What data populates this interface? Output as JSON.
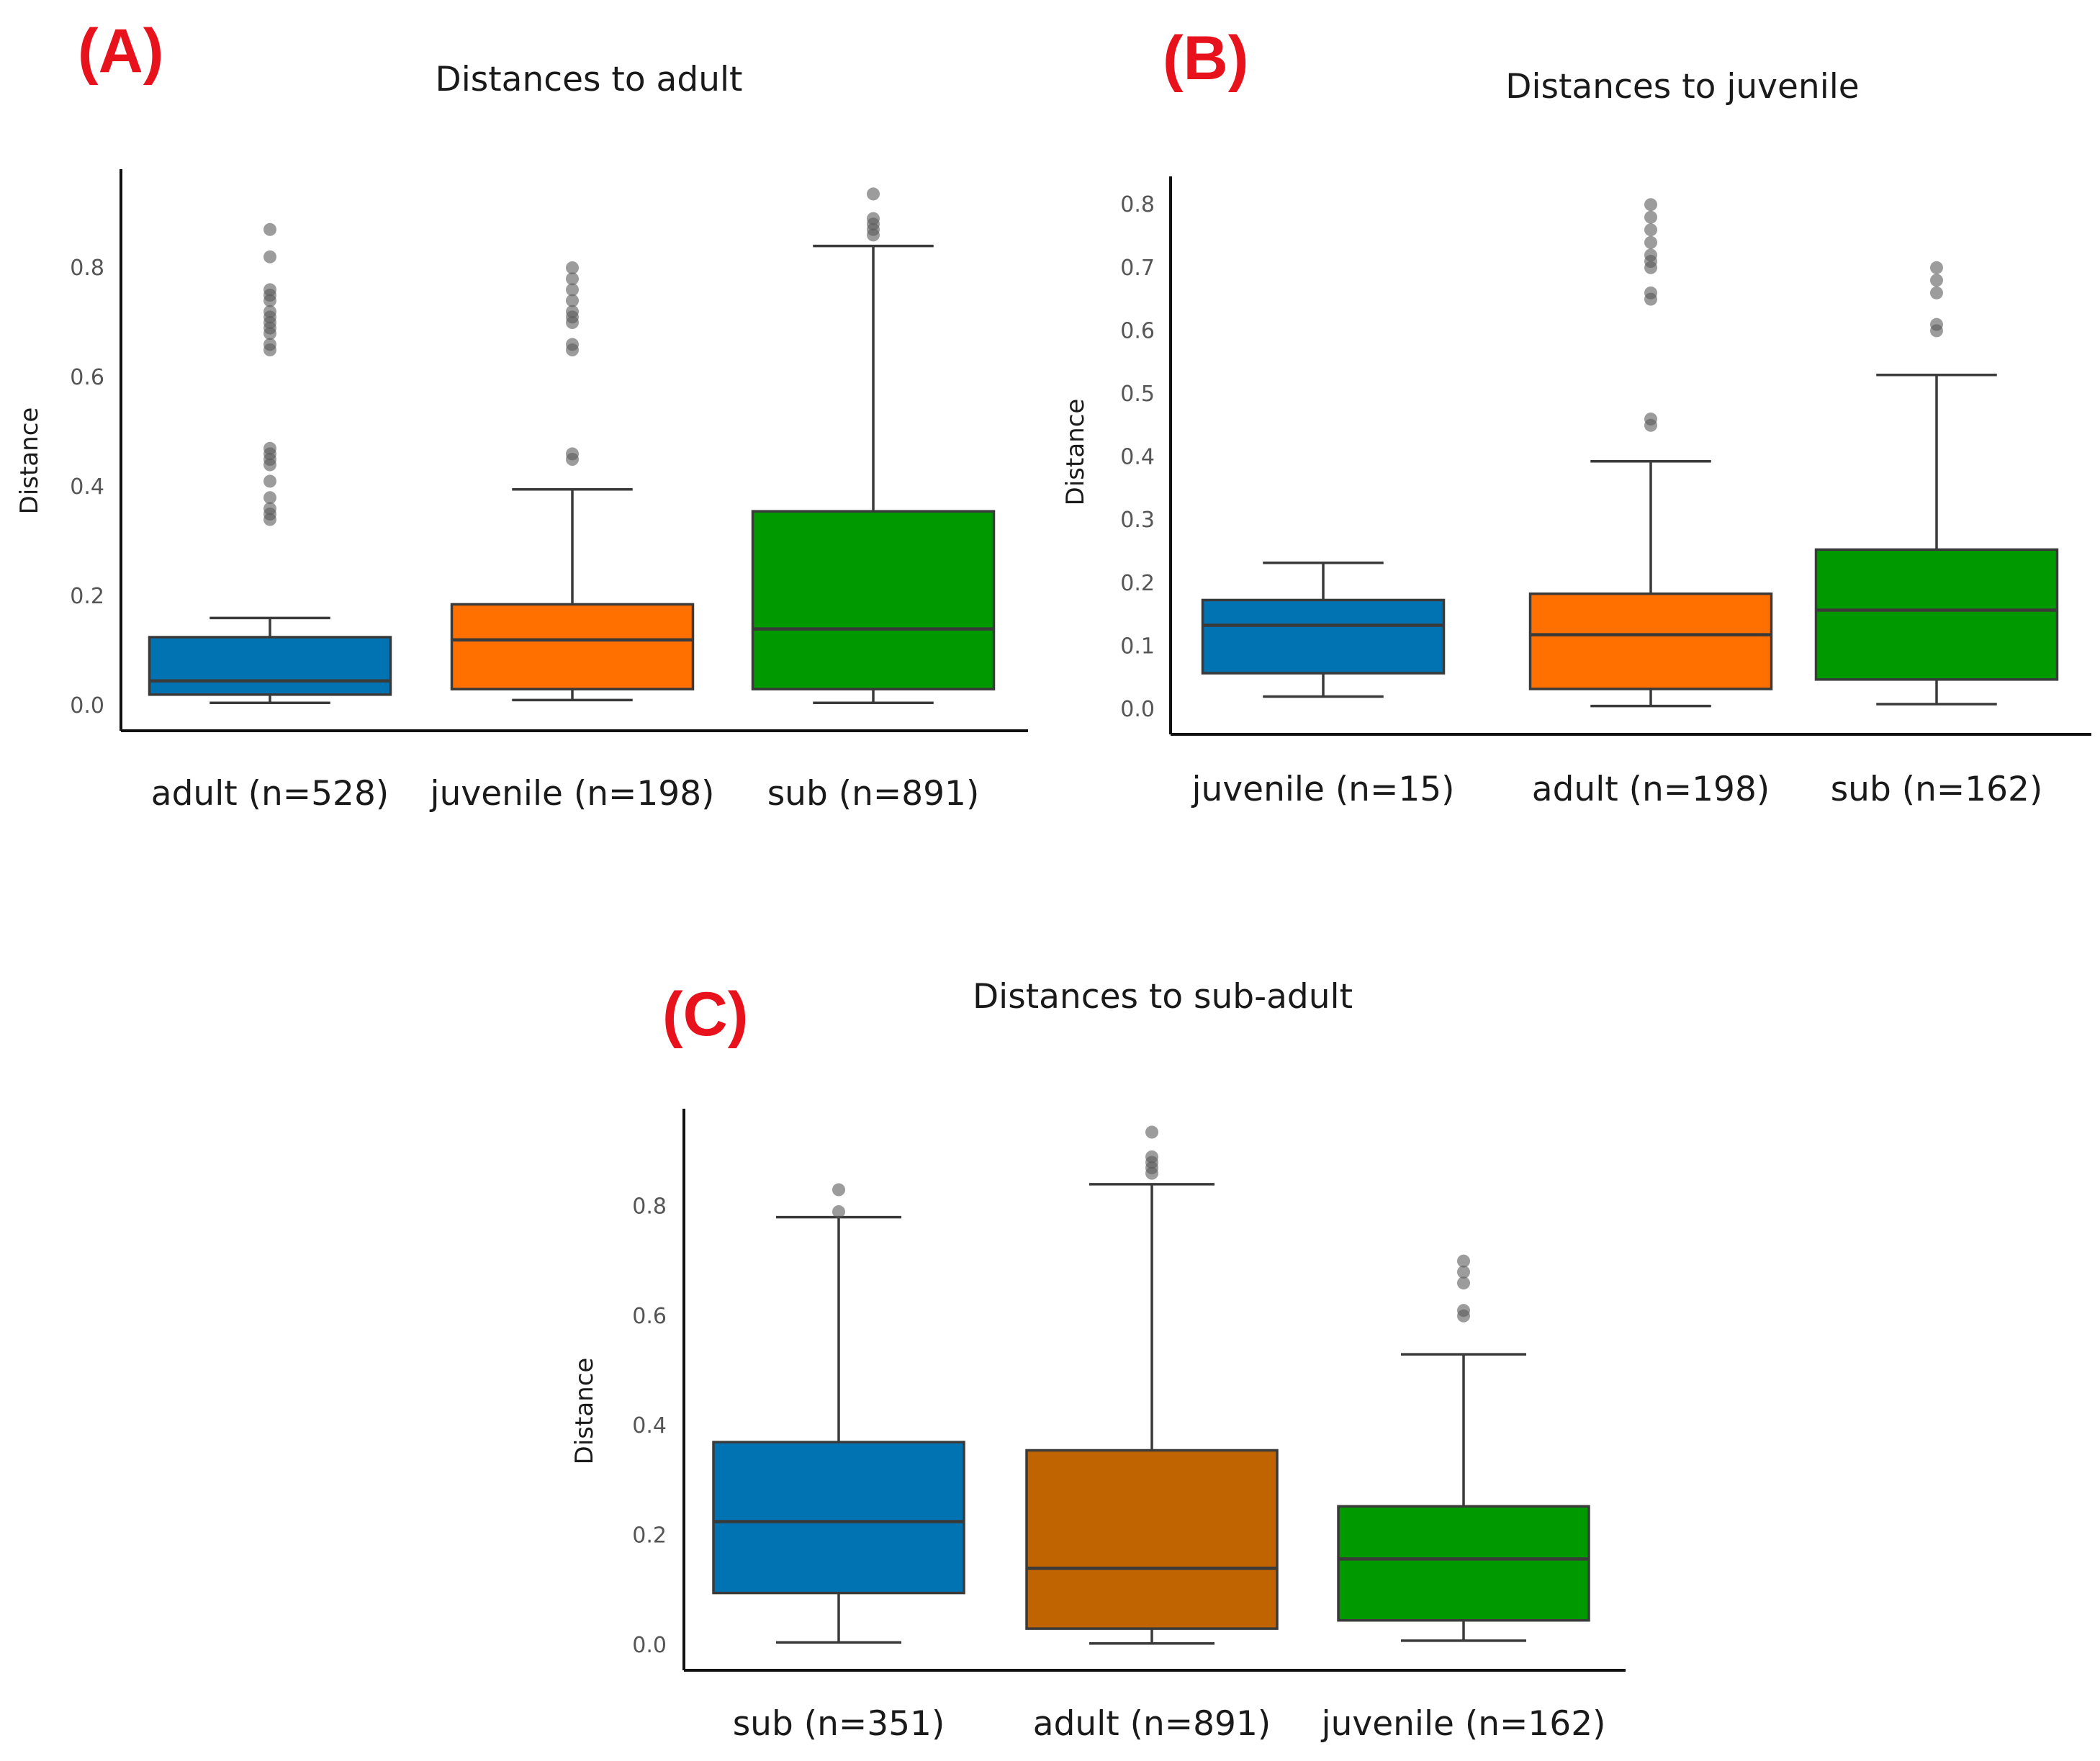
{
  "chart_data": [
    {
      "type": "box",
      "panel_label": "(A)",
      "title": "Distances to adult",
      "ylabel": "Distance",
      "ylim": [
        0,
        0.95
      ],
      "yticks": [
        0.0,
        0.2,
        0.4,
        0.6,
        0.8
      ],
      "ytick_labels": [
        "0.0",
        "0.2",
        "0.4",
        "0.6",
        "0.8"
      ],
      "grid": false,
      "categories": [
        "adult (n=528)",
        "juvenile (n=198)",
        "sub (n=891)"
      ],
      "boxes": [
        {
          "name": "adult (n=528)",
          "color": "#0173b2",
          "whislo": 0.005,
          "q1": 0.02,
          "median": 0.045,
          "q3": 0.125,
          "whishi": 0.16,
          "fliers": [
            0.34,
            0.35,
            0.36,
            0.38,
            0.41,
            0.44,
            0.45,
            0.46,
            0.47,
            0.65,
            0.66,
            0.68,
            0.69,
            0.7,
            0.71,
            0.72,
            0.74,
            0.75,
            0.76,
            0.82,
            0.87
          ]
        },
        {
          "name": "juvenile (n=198)",
          "color": "#ff7000",
          "whislo": 0.01,
          "q1": 0.03,
          "median": 0.12,
          "q3": 0.185,
          "whishi": 0.395,
          "fliers": [
            0.45,
            0.46,
            0.65,
            0.66,
            0.7,
            0.71,
            0.72,
            0.74,
            0.76,
            0.78,
            0.8
          ]
        },
        {
          "name": "sub (n=891)",
          "color": "#009900",
          "whislo": 0.005,
          "q1": 0.03,
          "median": 0.14,
          "q3": 0.355,
          "whishi": 0.84,
          "fliers": [
            0.86,
            0.87,
            0.88,
            0.89,
            0.935
          ]
        }
      ]
    },
    {
      "type": "box",
      "panel_label": "(B)",
      "title": "Distances to juvenile",
      "ylabel": "Distance",
      "ylim": [
        0,
        0.83
      ],
      "yticks": [
        0.0,
        0.1,
        0.2,
        0.3,
        0.4,
        0.5,
        0.6,
        0.7,
        0.8
      ],
      "ytick_labels": [
        "0.0",
        "0.1",
        "0.2",
        "0.3",
        "0.4",
        "0.5",
        "0.6",
        "0.7",
        "0.8"
      ],
      "grid": false,
      "categories": [
        "juvenile (n=15)",
        "adult (n=198)",
        "sub (n=162)"
      ],
      "boxes": [
        {
          "name": "juvenile (n=15)",
          "color": "#0173b2",
          "whislo": 0.02,
          "q1": 0.057,
          "median": 0.133,
          "q3": 0.173,
          "whishi": 0.232,
          "fliers": []
        },
        {
          "name": "adult (n=198)",
          "color": "#ff7000",
          "whislo": 0.005,
          "q1": 0.032,
          "median": 0.118,
          "q3": 0.183,
          "whishi": 0.393,
          "fliers": [
            0.45,
            0.46,
            0.65,
            0.66,
            0.7,
            0.71,
            0.72,
            0.74,
            0.76,
            0.78,
            0.8
          ]
        },
        {
          "name": "sub (n=162)",
          "color": "#009900",
          "whislo": 0.008,
          "q1": 0.047,
          "median": 0.157,
          "q3": 0.253,
          "whishi": 0.53,
          "fliers": [
            0.6,
            0.61,
            0.66,
            0.68,
            0.7
          ]
        }
      ]
    },
    {
      "type": "box",
      "panel_label": "(C)",
      "title": "Distances to sub-adult",
      "ylabel": "Distance",
      "ylim": [
        0,
        0.95
      ],
      "yticks": [
        0.0,
        0.2,
        0.4,
        0.6,
        0.8
      ],
      "ytick_labels": [
        "0.0",
        "0.2",
        "0.4",
        "0.6",
        "0.8"
      ],
      "grid": false,
      "categories": [
        "sub (n=351)",
        "adult (n=891)",
        "juvenile (n=162)"
      ],
      "boxes": [
        {
          "name": "sub (n=351)",
          "color": "#0173b2",
          "whislo": 0.005,
          "q1": 0.095,
          "median": 0.225,
          "q3": 0.37,
          "whishi": 0.78,
          "fliers": [
            0.79,
            0.83
          ]
        },
        {
          "name": "adult (n=891)",
          "color": "#bf6400",
          "whislo": 0.003,
          "q1": 0.03,
          "median": 0.14,
          "q3": 0.355,
          "whishi": 0.84,
          "fliers": [
            0.86,
            0.87,
            0.88,
            0.89,
            0.935
          ]
        },
        {
          "name": "juvenile (n=162)",
          "color": "#009900",
          "whislo": 0.008,
          "q1": 0.045,
          "median": 0.157,
          "q3": 0.253,
          "whishi": 0.53,
          "fliers": [
            0.6,
            0.61,
            0.66,
            0.68,
            0.7
          ]
        }
      ]
    }
  ]
}
